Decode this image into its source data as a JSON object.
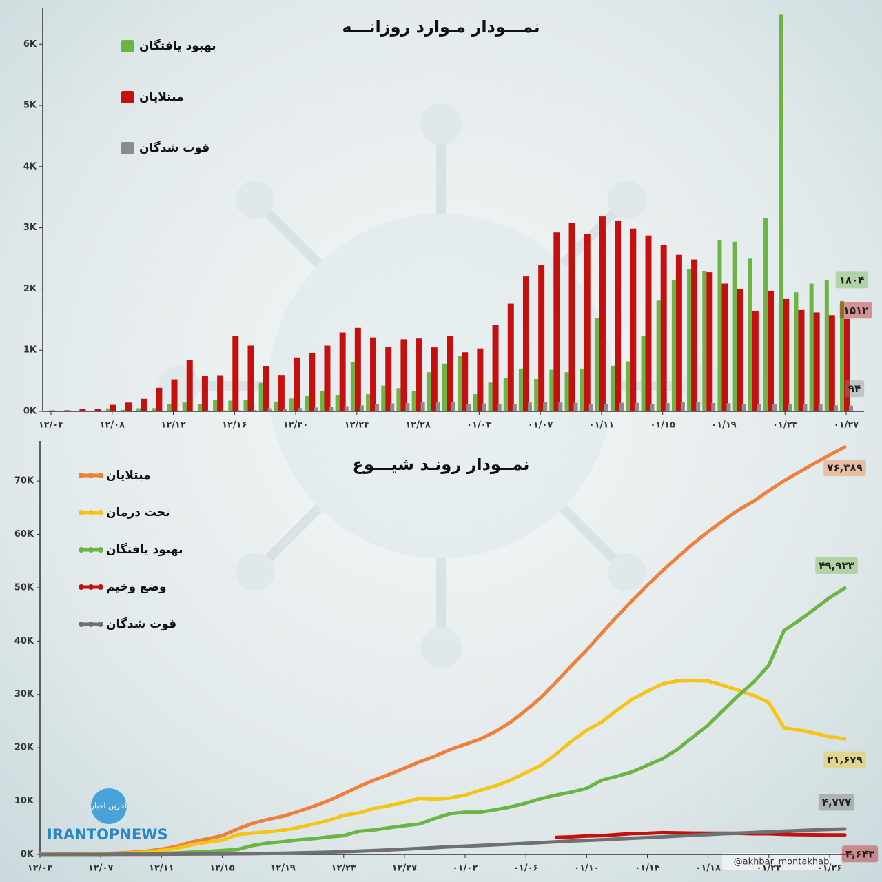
{
  "chart_data": [
    {
      "type": "bar",
      "title": "نمـــودار مـوارد روزانـــه",
      "categories": [
        "۱۲/۰۴",
        null,
        null,
        null,
        "۱۲/۰۸",
        null,
        null,
        null,
        "۱۲/۱۲",
        null,
        null,
        null,
        "۱۲/۱۶",
        null,
        null,
        null,
        "۱۲/۲۰",
        null,
        null,
        null,
        "۱۲/۲۴",
        null,
        null,
        null,
        "۱۲/۲۸",
        null,
        null,
        null,
        "۰۱/۰۳",
        null,
        null,
        null,
        "۰۱/۰۷",
        null,
        null,
        null,
        "۰۱/۱۱",
        null,
        null,
        null,
        "۰۱/۱۵",
        null,
        null,
        null,
        "۰۱/۱۹",
        null,
        null,
        null,
        "۰۱/۲۳",
        null,
        null,
        null,
        "۰۱/۲۷"
      ],
      "series": [
        {
          "name": "بهبود یافتگان",
          "color": "#6cb444",
          "values": [
            0,
            0,
            0,
            0,
            49,
            24,
            50,
            52,
            116,
            144,
            117,
            187,
            174,
            190,
            465,
            160,
            210,
            250,
            330,
            270,
            810,
            280,
            420,
            380,
            330,
            640,
            780,
            900,
            280,
            470,
            550,
            700,
            530,
            680,
            640,
            700,
            1520,
            745,
            817,
            1238,
            1810,
            2150,
            2330,
            2290,
            2803,
            2773,
            2497,
            3156,
            6482,
            1947,
            2089,
            2146,
            1804
          ],
          "value_labels": [
            null,
            null,
            null,
            null,
            null,
            null,
            null,
            null,
            null,
            null,
            null,
            null,
            null,
            null,
            null,
            null,
            null,
            null,
            null,
            null,
            null,
            null,
            null,
            null,
            null,
            null,
            null,
            null,
            null,
            null,
            null,
            null,
            null,
            null,
            null,
            null,
            null,
            null,
            null,
            null,
            null,
            null,
            null,
            null,
            null,
            null,
            null,
            null,
            null,
            null,
            null,
            null,
            "۱۸۰۴"
          ]
        },
        {
          "name": "مبتلایان",
          "color": "#c4100e",
          "values": [
            15,
            18,
            34,
            44,
            106,
            143,
            205,
            385,
            523,
            835,
            586,
            591,
            1234,
            1076,
            743,
            595,
            881,
            958,
            1075,
            1289,
            1365,
            1209,
            1053,
            1178,
            1192,
            1046,
            1237,
            966,
            1028,
            1411,
            1762,
            2206,
            2389,
            2926,
            3076,
            2901,
            3186,
            3110,
            2988,
            2875,
            2715,
            2560,
            2483,
            2274,
            2089,
            1997,
            1634,
            1972,
            1837,
            1657,
            1617,
            1574,
            1512
          ],
          "value_labels": [
            null,
            null,
            null,
            null,
            null,
            null,
            null,
            null,
            null,
            null,
            null,
            null,
            null,
            null,
            null,
            null,
            null,
            null,
            null,
            null,
            null,
            null,
            null,
            null,
            null,
            null,
            null,
            null,
            null,
            null,
            null,
            null,
            null,
            null,
            null,
            null,
            null,
            null,
            null,
            null,
            null,
            null,
            null,
            null,
            null,
            null,
            null,
            null,
            null,
            null,
            null,
            null,
            "۱۵۱۲"
          ]
        },
        {
          "name": "فوت شدگان",
          "color": "#8c8c8c",
          "values": [
            3,
            4,
            4,
            3,
            7,
            8,
            9,
            11,
            12,
            11,
            15,
            15,
            17,
            21,
            49,
            43,
            54,
            63,
            75,
            85,
            97,
            113,
            129,
            135,
            147,
            149,
            149,
            123,
            129,
            127,
            122,
            143,
            157,
            144,
            139,
            123,
            117,
            141,
            138,
            124,
            134,
            158,
            151,
            136,
            133,
            121,
            117,
            122,
            125,
            117,
            111,
            98,
            94
          ],
          "value_labels": [
            null,
            null,
            null,
            null,
            null,
            null,
            null,
            null,
            null,
            null,
            null,
            null,
            null,
            null,
            null,
            null,
            null,
            null,
            null,
            null,
            null,
            null,
            null,
            null,
            null,
            null,
            null,
            null,
            null,
            null,
            null,
            null,
            null,
            null,
            null,
            null,
            null,
            null,
            null,
            null,
            null,
            null,
            null,
            null,
            null,
            null,
            null,
            null,
            null,
            null,
            null,
            null,
            "۹۴"
          ]
        }
      ],
      "ylim": [
        0,
        6600
      ],
      "yticks": [
        {
          "value": 0,
          "label": "0K"
        },
        {
          "value": 1000,
          "label": "1K"
        },
        {
          "value": 2000,
          "label": "2K"
        },
        {
          "value": 3000,
          "label": "3K"
        },
        {
          "value": 4000,
          "label": "4K"
        },
        {
          "value": 5000,
          "label": "5K"
        },
        {
          "value": 6000,
          "label": "6K"
        }
      ]
    },
    {
      "type": "line",
      "title": "نمــودار رونـد شیـــوع",
      "categories": [
        "۱۲/۰۳",
        null,
        null,
        null,
        "۱۲/۰۷",
        null,
        null,
        null,
        "۱۲/۱۱",
        null,
        null,
        null,
        "۱۲/۱۵",
        null,
        null,
        null,
        "۱۲/۱۹",
        null,
        null,
        null,
        "۱۲/۲۳",
        null,
        null,
        null,
        "۱۲/۲۷",
        null,
        null,
        null,
        "۰۱/۰۲",
        null,
        null,
        null,
        "۰۱/۰۶",
        null,
        null,
        null,
        "۰۱/۱۰",
        null,
        null,
        null,
        "۰۱/۱۴",
        null,
        null,
        null,
        "۰۱/۱۸",
        null,
        null,
        null,
        "۰۱/۲۲",
        null,
        null,
        null,
        "۰۱/۲۶",
        null
      ],
      "series": [
        {
          "name": "مبتلایان",
          "color": "#ef7f3a",
          "values": [
            28,
            43,
            61,
            95,
            139,
            245,
            388,
            593,
            978,
            1501,
            2336,
            2922,
            3513,
            4747,
            5823,
            6566,
            7161,
            8042,
            9000,
            10075,
            11364,
            12729,
            13938,
            14991,
            16169,
            17361,
            18407,
            19644,
            20610,
            21638,
            23049,
            24811,
            27017,
            29406,
            32332,
            35408,
            38309,
            41495,
            44605,
            47593,
            50468,
            53183,
            55743,
            58226,
            60500,
            62589,
            64586,
            66220,
            68192,
            70029,
            71686,
            73303,
            74877,
            76389
          ],
          "value_labels": [
            null,
            null,
            null,
            null,
            null,
            null,
            null,
            null,
            null,
            null,
            null,
            null,
            null,
            null,
            null,
            null,
            null,
            null,
            null,
            null,
            null,
            null,
            null,
            null,
            null,
            null,
            null,
            null,
            null,
            null,
            null,
            null,
            null,
            null,
            null,
            null,
            null,
            null,
            null,
            null,
            null,
            null,
            null,
            null,
            null,
            null,
            null,
            null,
            null,
            null,
            null,
            null,
            null,
            "۷۶,۳۸۹"
          ]
        },
        {
          "name": "تحت درمان",
          "color": "#f6c414",
          "values": [
            23,
            35,
            49,
            79,
            120,
            170,
            281,
            427,
            749,
            1144,
            1824,
            2278,
            2667,
            3710,
            4009,
            4238,
            4530,
            5020,
            5687,
            6370,
            7321,
            7779,
            8624,
            9142,
            9792,
            10516,
            10378,
            10576,
            11123,
            12022,
            12861,
            13964,
            15315,
            16715,
            18821,
            21212,
            23278,
            24827,
            27051,
            29084,
            30597,
            31954,
            32555,
            32612,
            32525,
            31678,
            30781,
            29801,
            28495,
            23725,
            23318,
            22735,
            22065,
            21679
          ],
          "value_labels": [
            null,
            null,
            null,
            null,
            null,
            null,
            null,
            null,
            null,
            null,
            null,
            null,
            null,
            null,
            null,
            null,
            null,
            null,
            null,
            null,
            null,
            null,
            null,
            null,
            null,
            null,
            null,
            null,
            null,
            null,
            null,
            null,
            null,
            null,
            null,
            null,
            null,
            null,
            null,
            null,
            null,
            null,
            null,
            null,
            null,
            null,
            null,
            null,
            null,
            null,
            null,
            null,
            null,
            "۲۱,۶۷۹"
          ]
        },
        {
          "name": "بهبود یافتگان",
          "color": "#6cb444",
          "values": [
            0,
            0,
            0,
            0,
            0,
            49,
            73,
            123,
            175,
            291,
            435,
            552,
            739,
            913,
            1669,
            2134,
            2394,
            2731,
            2959,
            3276,
            3529,
            4339,
            4590,
            4996,
            5389,
            5710,
            6745,
            7635,
            7931,
            7931,
            8376,
            8913,
            9625,
            10457,
            11133,
            11679,
            12391,
            13911,
            14656,
            15473,
            16711,
            17935,
            19736,
            22011,
            24236,
            27039,
            29812,
            32309,
            35465,
            41947,
            43894,
            45983,
            48129,
            49933
          ],
          "value_labels": [
            null,
            null,
            null,
            null,
            null,
            null,
            null,
            null,
            null,
            null,
            null,
            null,
            null,
            null,
            null,
            null,
            null,
            null,
            null,
            null,
            null,
            null,
            null,
            null,
            null,
            null,
            null,
            null,
            null,
            null,
            null,
            null,
            null,
            null,
            null,
            null,
            null,
            null,
            null,
            null,
            null,
            null,
            null,
            null,
            null,
            null,
            null,
            null,
            null,
            null,
            null,
            null,
            null,
            "۴۹,۹۳۳"
          ]
        },
        {
          "name": "وضع وخیم",
          "color": "#c4100e",
          "values": [
            null,
            null,
            null,
            null,
            null,
            null,
            null,
            null,
            null,
            null,
            null,
            null,
            null,
            null,
            null,
            null,
            null,
            null,
            null,
            null,
            null,
            null,
            null,
            null,
            null,
            null,
            null,
            null,
            null,
            null,
            null,
            null,
            null,
            null,
            3206,
            3294,
            3467,
            3511,
            3703,
            3899,
            3956,
            4083,
            4035,
            3987,
            3981,
            3969,
            3956,
            3877,
            3871,
            3762,
            3713,
            3682,
            3657,
            3643
          ],
          "value_labels": [
            null,
            null,
            null,
            null,
            null,
            null,
            null,
            null,
            null,
            null,
            null,
            null,
            null,
            null,
            null,
            null,
            null,
            null,
            null,
            null,
            null,
            null,
            null,
            null,
            null,
            null,
            null,
            null,
            null,
            null,
            null,
            null,
            null,
            null,
            null,
            null,
            null,
            null,
            null,
            null,
            null,
            null,
            null,
            null,
            null,
            null,
            null,
            null,
            null,
            null,
            null,
            null,
            null,
            "۳,۶۴۳"
          ]
        },
        {
          "name": "فوت شدگان",
          "color": "#707070",
          "values": [
            5,
            8,
            12,
            16,
            19,
            26,
            34,
            43,
            54,
            66,
            77,
            92,
            107,
            124,
            145,
            194,
            237,
            291,
            354,
            429,
            514,
            611,
            724,
            853,
            988,
            1135,
            1284,
            1433,
            1556,
            1685,
            1812,
            1934,
            2077,
            2234,
            2378,
            2517,
            2640,
            2757,
            2898,
            3036,
            3160,
            3294,
            3452,
            3603,
            3739,
            3872,
            3993,
            4110,
            4232,
            4357,
            4474,
            4585,
            4683,
            4777
          ],
          "value_labels": [
            null,
            null,
            null,
            null,
            null,
            null,
            null,
            null,
            null,
            null,
            null,
            null,
            null,
            null,
            null,
            null,
            null,
            null,
            null,
            null,
            null,
            null,
            null,
            null,
            null,
            null,
            null,
            null,
            null,
            null,
            null,
            null,
            null,
            null,
            null,
            null,
            null,
            null,
            null,
            null,
            null,
            null,
            null,
            null,
            null,
            null,
            null,
            null,
            null,
            null,
            null,
            null,
            null,
            "۴,۷۷۷"
          ]
        }
      ],
      "ylim": [
        0,
        77500
      ],
      "yticks": [
        {
          "value": 0,
          "label": "0K"
        },
        {
          "value": 10000,
          "label": "10K"
        },
        {
          "value": 20000,
          "label": "20K"
        },
        {
          "value": 30000,
          "label": "30K"
        },
        {
          "value": 40000,
          "label": "40K"
        },
        {
          "value": 50000,
          "label": "50K"
        },
        {
          "value": 60000,
          "label": "60K"
        },
        {
          "value": 70000,
          "label": "70K"
        }
      ]
    }
  ],
  "footer": {
    "badge": "آخرین اخبار",
    "brand": "IRANTOPNEWS",
    "handle": "@akhbar_montakhab"
  }
}
